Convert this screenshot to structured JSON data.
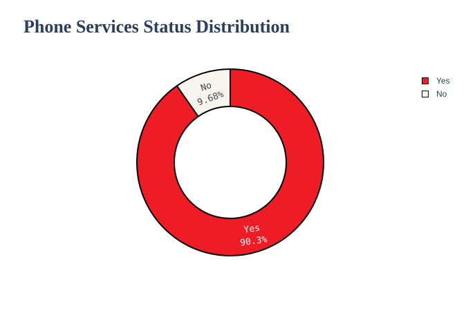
{
  "chart_data": {
    "type": "pie",
    "hole": true,
    "title": "Phone Services Status Distribution",
    "categories": [
      "Yes",
      "No"
    ],
    "values": [
      90.3,
      9.68
    ],
    "percent_labels": [
      "90.3%",
      "9.68%"
    ],
    "colors": [
      "#ee1c25",
      "#f8f5ee"
    ],
    "text_colors": [
      "#ffffff",
      "#444444"
    ],
    "legend_placement": "top-right"
  }
}
